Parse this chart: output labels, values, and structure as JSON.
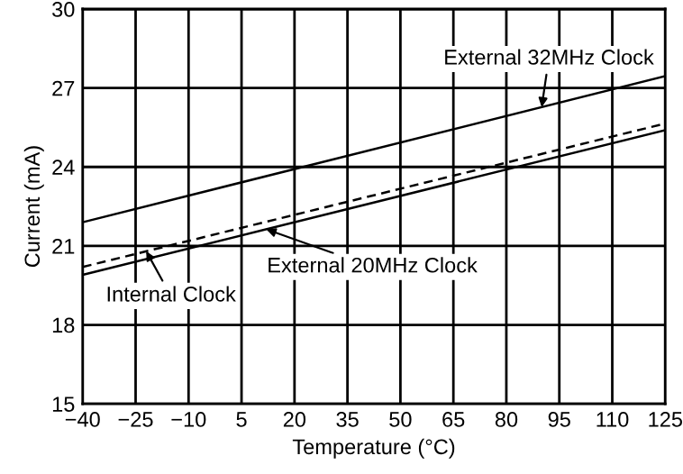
{
  "chart_data": {
    "type": "line",
    "xlabel": "Temperature (°C)",
    "ylabel": "Current (mA)",
    "x": [
      -40,
      125
    ],
    "series": [
      {
        "color": "#000000",
        "line_style": "solid",
        "values": [
          21.9,
          27.45
        ]
      },
      {
        "color": "#000000",
        "line_style": "solid",
        "values": [
          19.9,
          25.4
        ]
      },
      {
        "color": "#000000",
        "line_style": "dashed",
        "values": [
          20.2,
          25.65
        ]
      }
    ],
    "xlim": [
      -40,
      125
    ],
    "xticks": [
      -40,
      -25,
      -10,
      5,
      20,
      35,
      50,
      65,
      80,
      95,
      110,
      125
    ],
    "ylim": [
      15,
      30
    ],
    "yticks": [
      15,
      18,
      21,
      24,
      27,
      30
    ],
    "grid": true,
    "marker": "none",
    "annotations": [
      {
        "text": "External 32MHz Clock",
        "x": 90,
        "y": 26.27
      },
      {
        "text": "External 20MHz Clock",
        "x": 12,
        "y": 21.63
      },
      {
        "text": "Internal Clock",
        "x": -22,
        "y": 20.8
      }
    ]
  }
}
